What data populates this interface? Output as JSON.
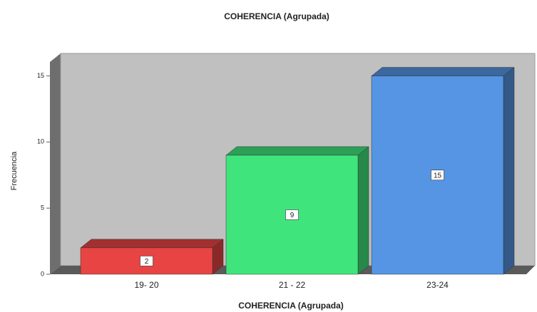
{
  "chart_data": {
    "type": "bar3d",
    "title": "COHERENCIA (Agrupada)",
    "x_label": "COHERENCIA (Agrupada)",
    "y_label": "Frecuencia",
    "categories": [
      "19- 20",
      "21 - 22",
      "23-24"
    ],
    "values": [
      2,
      9,
      15
    ],
    "colors": [
      "#e84444",
      "#3fe57c",
      "#5595e3"
    ],
    "ylim": [
      0,
      16.7
    ],
    "yticks": [
      0,
      5,
      10,
      15
    ]
  }
}
